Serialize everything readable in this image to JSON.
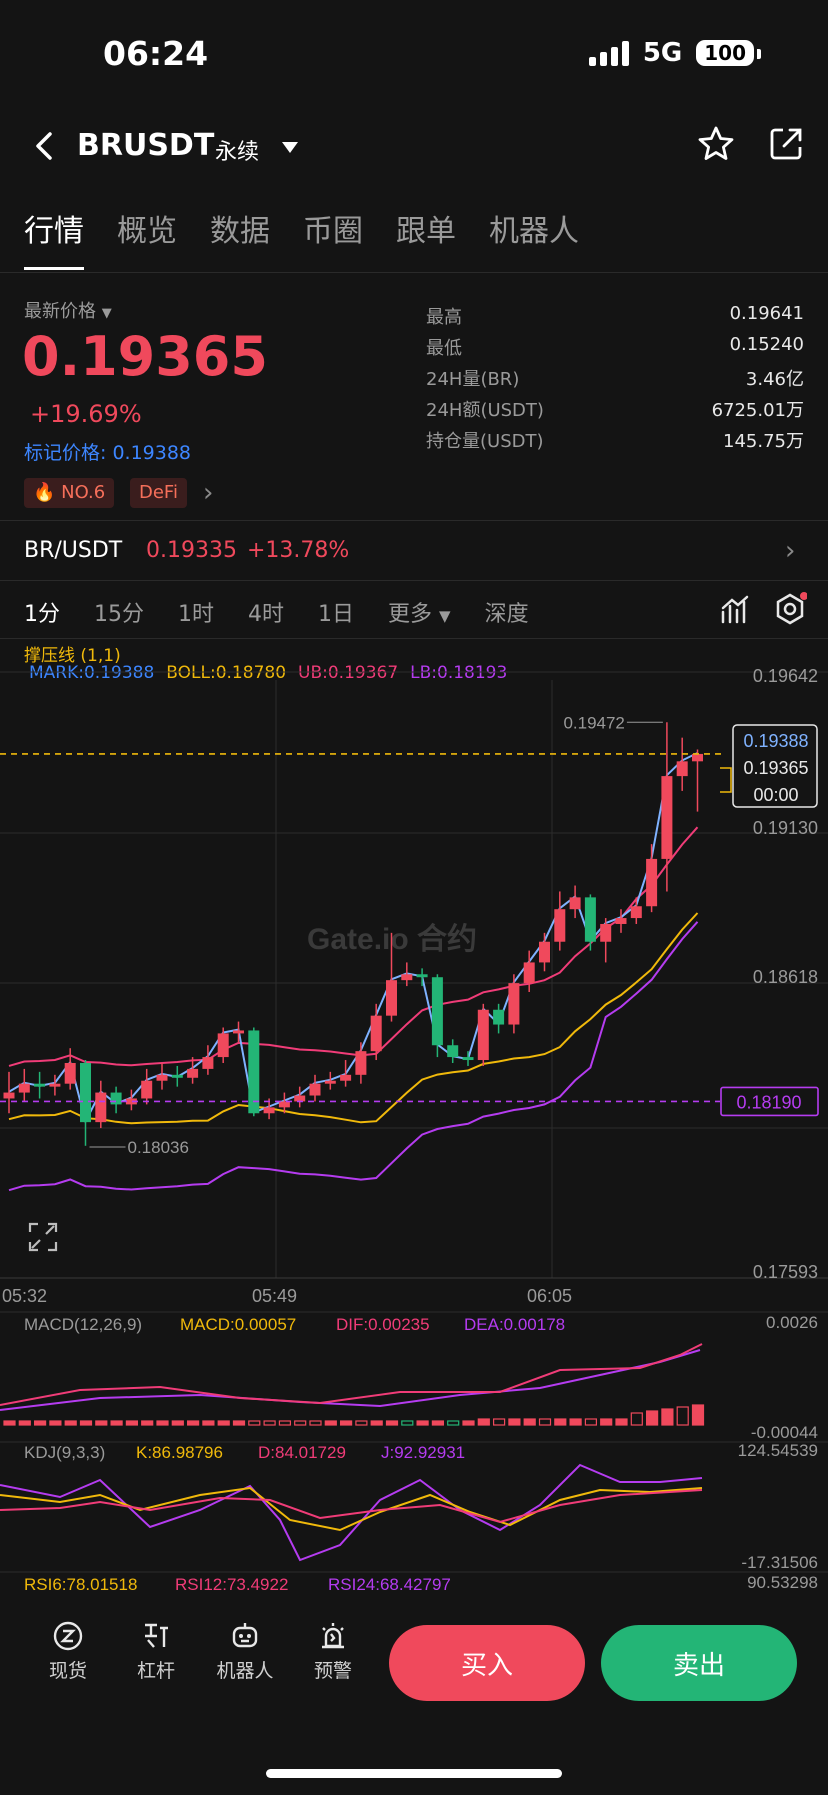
{
  "status": {
    "time": "06:24",
    "network": "5G",
    "battery": "100"
  },
  "header": {
    "title": "BRUSDT",
    "subtitle": "永续"
  },
  "tabs": [
    "行情",
    "概览",
    "数据",
    "币圈",
    "跟单",
    "机器人"
  ],
  "ticker": {
    "latest_label": "最新价格",
    "price": "0.19365",
    "change_pct": "+19.69%",
    "mark_price": "标记价格: 0.19388",
    "tags": [
      "NO.6",
      "DeFi"
    ],
    "stats": [
      {
        "k": "最高",
        "v": "0.19641"
      },
      {
        "k": "最低",
        "v": "0.15240"
      },
      {
        "k": "24H量(BR)",
        "v": "3.46亿"
      },
      {
        "k": "24H额(USDT)",
        "v": "6725.01万"
      },
      {
        "k": "持仓量(USDT)",
        "v": "145.75万"
      }
    ]
  },
  "spot_pair": {
    "pair": "BR/USDT",
    "price": "0.19335",
    "pct": "+13.78%"
  },
  "kline_tabs": [
    "1分",
    "15分",
    "1时",
    "4时",
    "1日",
    "更多",
    "深度"
  ],
  "indicator": {
    "name": "撑压线 (1,1)",
    "mark": "MARK:0.19388",
    "boll": "BOLL:0.18780",
    "ub": "UB:0.19367",
    "lb": "LB:0.18193"
  },
  "chart_data": {
    "type": "candlestick",
    "y_axis_labels": [
      "0.19642",
      "0.19130",
      "0.18618",
      "0.17593"
    ],
    "time_labels": [
      "05:32",
      "05:49",
      "06:05"
    ],
    "high_marker": "0.19472",
    "low_marker": "0.18036",
    "price_box": {
      "mark": "0.19388",
      "last": "0.19365",
      "countdown": "00:00"
    },
    "support_label": "0.18190",
    "watermark": "Gate.io 合约",
    "candles": [
      {
        "o": 0.182,
        "c": 0.1822,
        "h": 0.1829,
        "l": 0.1815
      },
      {
        "o": 0.1822,
        "c": 0.1825,
        "h": 0.183,
        "l": 0.1819
      },
      {
        "o": 0.1825,
        "c": 0.1824,
        "h": 0.1829,
        "l": 0.182
      },
      {
        "o": 0.1824,
        "c": 0.1825,
        "h": 0.1828,
        "l": 0.1821
      },
      {
        "o": 0.1825,
        "c": 0.1832,
        "h": 0.1837,
        "l": 0.1823
      },
      {
        "o": 0.1832,
        "c": 0.1812,
        "h": 0.1833,
        "l": 0.1804
      },
      {
        "o": 0.1812,
        "c": 0.1822,
        "h": 0.1826,
        "l": 0.181
      },
      {
        "o": 0.1822,
        "c": 0.1818,
        "h": 0.1824,
        "l": 0.1815
      },
      {
        "o": 0.1818,
        "c": 0.182,
        "h": 0.1823,
        "l": 0.1816
      },
      {
        "o": 0.182,
        "c": 0.1826,
        "h": 0.183,
        "l": 0.1818
      },
      {
        "o": 0.1826,
        "c": 0.1828,
        "h": 0.1832,
        "l": 0.1823
      },
      {
        "o": 0.1828,
        "c": 0.1827,
        "h": 0.1831,
        "l": 0.1824
      },
      {
        "o": 0.1827,
        "c": 0.183,
        "h": 0.1834,
        "l": 0.1825
      },
      {
        "o": 0.183,
        "c": 0.1834,
        "h": 0.1838,
        "l": 0.1828
      },
      {
        "o": 0.1834,
        "c": 0.1842,
        "h": 0.1844,
        "l": 0.1832
      },
      {
        "o": 0.1842,
        "c": 0.1843,
        "h": 0.1846,
        "l": 0.1839
      },
      {
        "o": 0.1843,
        "c": 0.1815,
        "h": 0.1844,
        "l": 0.1814
      },
      {
        "o": 0.1815,
        "c": 0.1817,
        "h": 0.182,
        "l": 0.1813
      },
      {
        "o": 0.1817,
        "c": 0.1819,
        "h": 0.1822,
        "l": 0.1815
      },
      {
        "o": 0.1819,
        "c": 0.1821,
        "h": 0.1824,
        "l": 0.1817
      },
      {
        "o": 0.1821,
        "c": 0.1825,
        "h": 0.1828,
        "l": 0.1819
      },
      {
        "o": 0.1825,
        "c": 0.1826,
        "h": 0.1829,
        "l": 0.1823
      },
      {
        "o": 0.1826,
        "c": 0.1828,
        "h": 0.1833,
        "l": 0.1824
      },
      {
        "o": 0.1828,
        "c": 0.1836,
        "h": 0.1839,
        "l": 0.1825
      },
      {
        "o": 0.1836,
        "c": 0.1848,
        "h": 0.1852,
        "l": 0.1833
      },
      {
        "o": 0.1848,
        "c": 0.186,
        "h": 0.1876,
        "l": 0.1846
      },
      {
        "o": 0.186,
        "c": 0.1862,
        "h": 0.1866,
        "l": 0.1858
      },
      {
        "o": 0.1862,
        "c": 0.1861,
        "h": 0.1864,
        "l": 0.1858
      },
      {
        "o": 0.1861,
        "c": 0.1838,
        "h": 0.1862,
        "l": 0.1834
      },
      {
        "o": 0.1838,
        "c": 0.1834,
        "h": 0.184,
        "l": 0.1832
      },
      {
        "o": 0.1834,
        "c": 0.1833,
        "h": 0.1836,
        "l": 0.1831
      },
      {
        "o": 0.1833,
        "c": 0.185,
        "h": 0.1852,
        "l": 0.1831
      },
      {
        "o": 0.185,
        "c": 0.1845,
        "h": 0.1852,
        "l": 0.1842
      },
      {
        "o": 0.1845,
        "c": 0.1859,
        "h": 0.1862,
        "l": 0.1842
      },
      {
        "o": 0.1859,
        "c": 0.1866,
        "h": 0.187,
        "l": 0.1856
      },
      {
        "o": 0.1866,
        "c": 0.1873,
        "h": 0.1876,
        "l": 0.1863
      },
      {
        "o": 0.1873,
        "c": 0.1884,
        "h": 0.189,
        "l": 0.187
      },
      {
        "o": 0.1884,
        "c": 0.1888,
        "h": 0.1892,
        "l": 0.1881
      },
      {
        "o": 0.1888,
        "c": 0.1873,
        "h": 0.1889,
        "l": 0.187
      },
      {
        "o": 0.1873,
        "c": 0.1879,
        "h": 0.1881,
        "l": 0.1866
      },
      {
        "o": 0.1879,
        "c": 0.1881,
        "h": 0.1884,
        "l": 0.1876
      },
      {
        "o": 0.1881,
        "c": 0.1885,
        "h": 0.1888,
        "l": 0.1879
      },
      {
        "o": 0.1885,
        "c": 0.1901,
        "h": 0.1906,
        "l": 0.1883
      },
      {
        "o": 0.1901,
        "c": 0.1929,
        "h": 0.19472,
        "l": 0.189
      },
      {
        "o": 0.1929,
        "c": 0.1934,
        "h": 0.1942,
        "l": 0.1924
      },
      {
        "o": 0.1934,
        "c": 0.19365,
        "h": 0.1938,
        "l": 0.1917
      }
    ]
  },
  "macd": {
    "label": "MACD(12,26,9)",
    "macd": "MACD:0.00057",
    "dif": "DIF:0.00235",
    "dea": "DEA:0.00178",
    "top": "0.0026",
    "bottom": "-0.00044"
  },
  "kdj": {
    "label": "KDJ(9,3,3)",
    "k": "K:86.98796",
    "d": "D:84.01729",
    "j": "J:92.92931",
    "top": "124.54539",
    "bottom": "-17.31506"
  },
  "rsi": {
    "rsi6": "RSI6:78.01518",
    "rsi12": "RSI12:73.4922",
    "rsi24": "RSI24:68.42797",
    "top": "90.53298"
  },
  "bottom_nav": [
    "现货",
    "杠杆",
    "机器人",
    "预警"
  ],
  "buttons": {
    "buy": "买入",
    "sell": "卖出"
  },
  "colors": {
    "up": "#f0495c",
    "down": "#23b576",
    "accent_blue": "#3d86ff",
    "boll": "#f0b90b"
  }
}
